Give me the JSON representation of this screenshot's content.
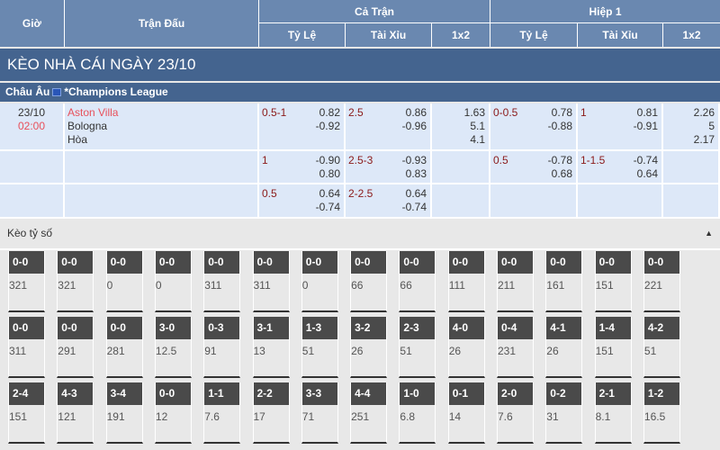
{
  "header": {
    "gio": "Giờ",
    "tran_dau": "Trận Đấu",
    "ca_tran": "Cả Trận",
    "hiep1": "Hiệp 1",
    "ty_le": "Tỷ Lệ",
    "tai_xiu": "Tài Xỉu",
    "x12": "1x2"
  },
  "title": "KÈO NHÀ CÁI NGÀY 23/10",
  "league": {
    "region": "Châu Âu",
    "name": "*Champions League"
  },
  "match": {
    "date": "23/10",
    "time": "02:00",
    "home": "Aston Villa",
    "away": "Bologna",
    "draw": "Hòa"
  },
  "rows": [
    {
      "ft_hdp": "0.5-1",
      "ft_hdp_o": [
        "0.82",
        "-0.92"
      ],
      "ft_ou": "2.5",
      "ft_ou_o": [
        "0.86",
        "-0.96"
      ],
      "ft_1x2": [
        "1.63",
        "5.1",
        "4.1"
      ],
      "h1_hdp": "0-0.5",
      "h1_hdp_o": [
        "0.78",
        "-0.88"
      ],
      "h1_ou": "1",
      "h1_ou_o": [
        "0.81",
        "-0.91"
      ],
      "h1_1x2": [
        "2.26",
        "5",
        "2.17"
      ]
    },
    {
      "ft_hdp": "1",
      "ft_hdp_o": [
        "-0.90",
        "0.80"
      ],
      "ft_ou": "2.5-3",
      "ft_ou_o": [
        "-0.93",
        "0.83"
      ],
      "h1_hdp": "0.5",
      "h1_hdp_o": [
        "-0.78",
        "0.68"
      ],
      "h1_ou": "1-1.5",
      "h1_ou_o": [
        "-0.74",
        "0.64"
      ]
    },
    {
      "ft_hdp": "0.5",
      "ft_hdp_o": [
        "0.64",
        "-0.74"
      ],
      "ft_ou": "2-2.5",
      "ft_ou_o": [
        "0.64",
        "-0.74"
      ]
    }
  ],
  "correct_score": {
    "label": "Kèo tỷ số",
    "items": [
      [
        "0-0",
        "321"
      ],
      [
        "0-0",
        "321"
      ],
      [
        "0-0",
        "0"
      ],
      [
        "0-0",
        "0"
      ],
      [
        "0-0",
        "311"
      ],
      [
        "0-0",
        "311"
      ],
      [
        "0-0",
        "0"
      ],
      [
        "0-0",
        "66"
      ],
      [
        "0-0",
        "66"
      ],
      [
        "0-0",
        "111"
      ],
      [
        "0-0",
        "211"
      ],
      [
        "0-0",
        "161"
      ],
      [
        "0-0",
        "151"
      ],
      [
        "0-0",
        "221"
      ],
      [
        "0-0",
        "311"
      ],
      [
        "0-0",
        "291"
      ],
      [
        "0-0",
        "281"
      ],
      [
        "3-0",
        "12.5"
      ],
      [
        "0-3",
        "91"
      ],
      [
        "3-1",
        "13"
      ],
      [
        "1-3",
        "51"
      ],
      [
        "3-2",
        "26"
      ],
      [
        "2-3",
        "51"
      ],
      [
        "4-0",
        "26"
      ],
      [
        "0-4",
        "231"
      ],
      [
        "4-1",
        "26"
      ],
      [
        "1-4",
        "151"
      ],
      [
        "4-2",
        "51"
      ],
      [
        "2-4",
        "151"
      ],
      [
        "4-3",
        "121"
      ],
      [
        "3-4",
        "191"
      ],
      [
        "0-0",
        "12"
      ],
      [
        "1-1",
        "7.6"
      ],
      [
        "2-2",
        "17"
      ],
      [
        "3-3",
        "71"
      ],
      [
        "4-4",
        "251"
      ],
      [
        "1-0",
        "6.8"
      ],
      [
        "0-1",
        "14"
      ],
      [
        "2-0",
        "7.6"
      ],
      [
        "0-2",
        "31"
      ],
      [
        "2-1",
        "8.1"
      ],
      [
        "1-2",
        "16.5"
      ]
    ]
  }
}
